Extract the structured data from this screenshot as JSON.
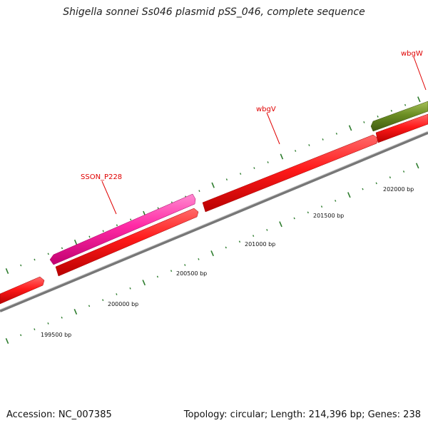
{
  "title": "Shigella sonnei Ss046 plasmid pSS_046, complete sequence",
  "footer": {
    "accession": "Accession: NC_007385",
    "summary": "Topology: circular; Length: 214,396 bp; Genes: 238"
  },
  "colors": {
    "forward_gene": "#ff1a1a",
    "reverse_gene": "#ff1a1a",
    "pink_gene": "#ff33aa",
    "olive_gene": "#6b8e23",
    "backbone": "#888888",
    "tick": "#2e7d2e",
    "label": "#e00000"
  },
  "gene_labels": [
    "SSON_P228",
    "wbgV",
    "wbgW"
  ],
  "bp_labels": [
    "199500 bp",
    "200000 bp",
    "200500 bp",
    "201000 bp",
    "201500 bp",
    "202000 bp"
  ]
}
